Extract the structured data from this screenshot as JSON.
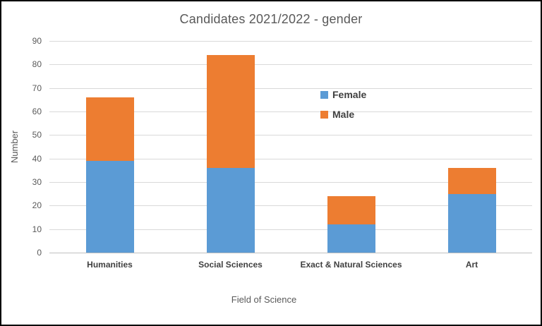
{
  "chart_data": {
    "type": "bar",
    "stacked": true,
    "title": "Candidates 2021/2022 - gender",
    "xlabel": "Field of Science",
    "ylabel": "Number",
    "categories": [
      "Humanities",
      "Social Sciences",
      "Exact & Natural Sciences",
      "Art"
    ],
    "series": [
      {
        "name": "Female",
        "color": "#5B9BD5",
        "values": [
          39,
          36,
          12,
          25
        ]
      },
      {
        "name": "Male",
        "color": "#ED7D31",
        "values": [
          27,
          48,
          12,
          11
        ]
      }
    ],
    "ylim": [
      0,
      90
    ],
    "yticks": [
      0,
      10,
      20,
      30,
      40,
      50,
      60,
      70,
      80,
      90
    ],
    "grid": true,
    "gridline_color": "#D9D9D9",
    "axis_line_color": "#BFBFBF",
    "title_color": "#595959",
    "tick_label_color": "#595959",
    "category_label_color": "#404040",
    "legend_position": "inside-right",
    "legend_entries": [
      "Female",
      "Male"
    ]
  }
}
